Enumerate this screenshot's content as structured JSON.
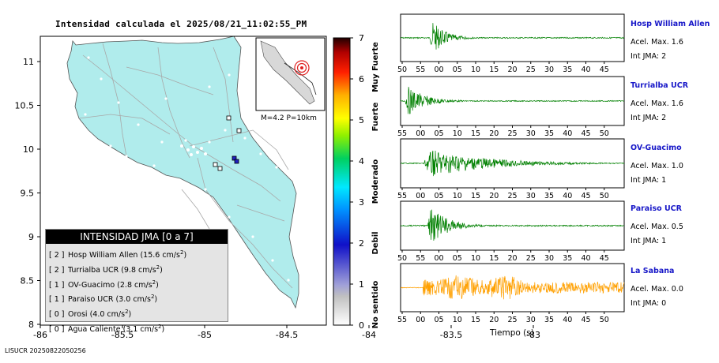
{
  "title": "Intensidad calculada el 2025/08/21_11:02:55_PM",
  "footer": "LISUCR 20250822050256",
  "map": {
    "x_ticks": [
      "-86",
      "-85.5",
      "-85",
      "-84.5",
      "-84",
      "-83.5",
      "-83"
    ],
    "y_ticks": [
      "11",
      "10.5",
      "10",
      "9.5",
      "9",
      "8.5",
      "8"
    ],
    "inset_label": "M=4.2 P=10km",
    "colors": {
      "land": "#b0ecec",
      "roads": "#a8a8a8",
      "border": "#000000",
      "epicenter": "#e02020"
    }
  },
  "scale": {
    "tick_labels": [
      "0",
      "1",
      "2",
      "3",
      "4",
      "5",
      "6",
      "7"
    ],
    "category_labels": [
      "No sentido",
      "Debil",
      "Moderado",
      "Fuerte",
      "Muy Fuerte"
    ]
  },
  "legend": {
    "header": "INTENSIDAD JMA [0 a 7]",
    "items": [
      {
        "index": "[ 2 ]",
        "station": "Hosp William Allen",
        "value": "15.6 cm/s",
        "sup": "2"
      },
      {
        "index": "[ 2 ]",
        "station": "Turrialba UCR",
        "value": "9.8 cm/s",
        "sup": "2"
      },
      {
        "index": "[ 1 ]",
        "station": "OV-Guacimo",
        "value": "2.8 cm/s",
        "sup": "2"
      },
      {
        "index": "[ 1 ]",
        "station": "Paraiso UCR",
        "value": "3.0 cm/s",
        "sup": "2"
      },
      {
        "index": "[ 0 ]",
        "station": "Orosi",
        "value": "4.0 cm/s",
        "sup": "2"
      },
      {
        "index": "[ 0 ]",
        "station": "Agua Caliente",
        "value": "3.1 cm/s",
        "sup": "2"
      }
    ]
  },
  "stations": [
    {
      "name": "Hosp William Allen",
      "acel": "Acel. Max. 1.6",
      "int": "Int JMA: 2",
      "color": "#008000",
      "ticks": [
        "50",
        "55",
        "00",
        "05",
        "10",
        "15",
        "20",
        "25",
        "30",
        "35",
        "40",
        "45"
      ]
    },
    {
      "name": "Turrialba UCR",
      "acel": "Acel. Max. 1.6",
      "int": "Int JMA: 2",
      "color": "#008000",
      "ticks": [
        "55",
        "00",
        "05",
        "10",
        "15",
        "20",
        "25",
        "30",
        "35",
        "40",
        "45",
        "50"
      ]
    },
    {
      "name": "OV-Guacimo",
      "acel": "Acel. Max. 1.0",
      "int": "Int JMA: 1",
      "color": "#008000",
      "ticks": [
        "55",
        "00",
        "05",
        "10",
        "15",
        "20",
        "25",
        "30",
        "35",
        "40",
        "45",
        "50"
      ]
    },
    {
      "name": "Paraiso UCR",
      "acel": "Acel. Max. 0.5",
      "int": "Int JMA: 1",
      "color": "#008000",
      "ticks": [
        "50",
        "55",
        "00",
        "05",
        "10",
        "15",
        "20",
        "25",
        "30",
        "35",
        "40",
        "45"
      ]
    },
    {
      "name": "La Sabana",
      "acel": "Acel. Max. 0.0",
      "int": "Int JMA: 0",
      "color": "#ffa000",
      "ticks": [
        "55",
        "00",
        "05",
        "10",
        "15",
        "20",
        "25",
        "30",
        "35",
        "40",
        "45",
        "50"
      ]
    }
  ],
  "time_label": "Tiempo (s)"
}
